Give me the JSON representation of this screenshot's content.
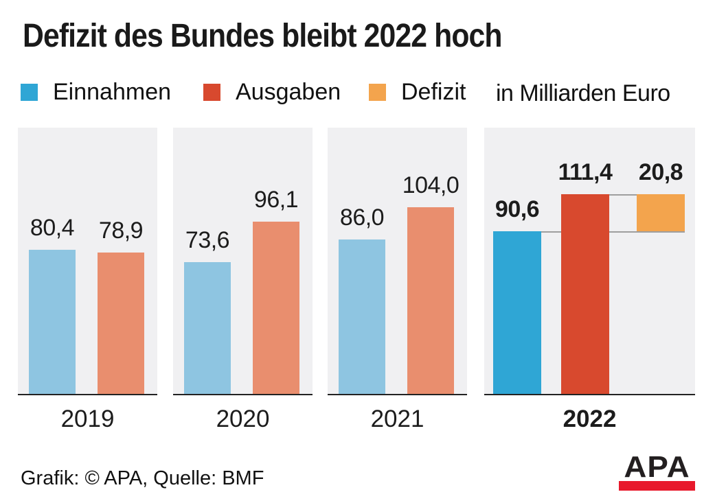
{
  "title": "Defizit des Bundes bleibt 2022 hoch",
  "unit_label": "in Milliarden Euro",
  "legend": [
    {
      "label": "Einnahmen",
      "color": "#2fa6d5"
    },
    {
      "label": "Ausgaben",
      "color": "#d8492e"
    },
    {
      "label": "Defizit",
      "color": "#f3a44d"
    }
  ],
  "footer": {
    "credit": "Grafik: © APA, Quelle: BMF"
  },
  "logo": {
    "text": "APA",
    "text_color": "#231f20",
    "bar_color": "#e8192c"
  },
  "chart_data": {
    "type": "bar",
    "title": "Defizit des Bundes bleibt 2022 hoch",
    "unit": "in Milliarden Euro",
    "categories": [
      "2019",
      "2020",
      "2021",
      "2022"
    ],
    "series": [
      {
        "name": "Einnahmen",
        "values": [
          80.4,
          73.6,
          86.0,
          90.6
        ]
      },
      {
        "name": "Ausgaben",
        "values": [
          78.9,
          96.1,
          104.0,
          111.4
        ]
      },
      {
        "name": "Defizit",
        "values": [
          null,
          null,
          null,
          20.8
        ]
      }
    ],
    "value_labels": [
      [
        "80,4",
        "78,9",
        null
      ],
      [
        "73,6",
        "96,1",
        null
      ],
      [
        "86,0",
        "104,0",
        null
      ],
      [
        "90,6",
        "111,4",
        "20,8"
      ]
    ],
    "highlight_category": "2022",
    "legend_position": "top",
    "grid": false,
    "colors": {
      "einnahmen_muted": "#8ec5e1",
      "ausgaben_muted": "#e98e6e",
      "einnahmen_strong": "#2fa6d5",
      "ausgaben_strong": "#d8492e",
      "defizit": "#f3a44d",
      "panel_bg": "#f0f0f2",
      "connector_line": "#9e9e9e",
      "axis_line": "#222222"
    }
  }
}
